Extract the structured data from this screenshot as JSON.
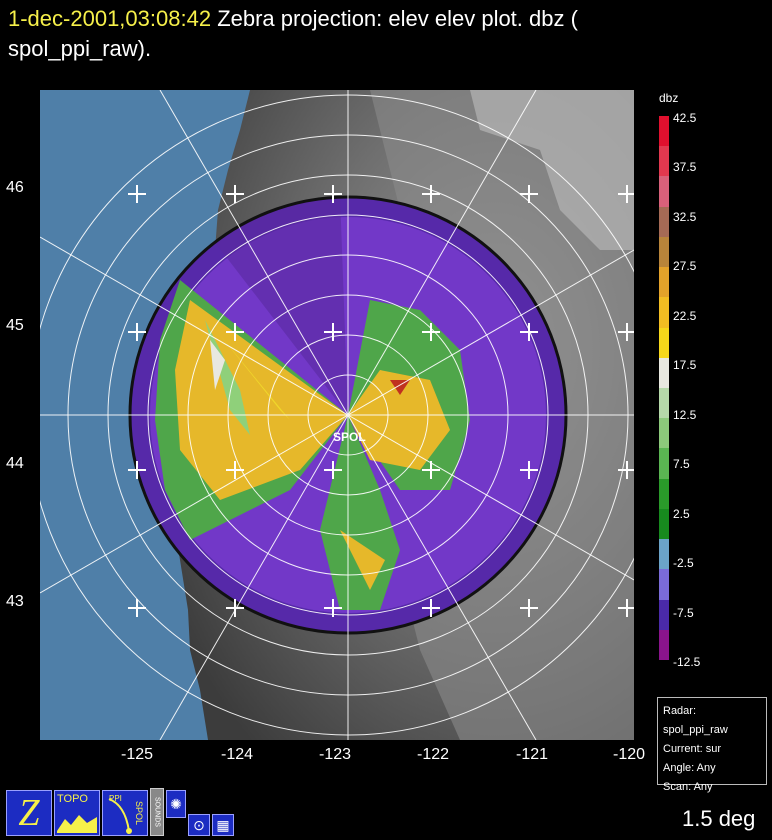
{
  "title": {
    "timestamp": "1-dec-2001,03:08:42",
    "description": "Zebra projection: elev elev  plot.  dbz (",
    "description_line2": "spol_ppi_raw)."
  },
  "map": {
    "y_labels": [
      "46",
      "45",
      "44",
      "43"
    ],
    "x_labels": [
      "-125",
      "-124",
      "-123",
      "-122",
      "-121",
      "-120"
    ],
    "radar_label": "SPOL"
  },
  "colorbar": {
    "title": "dbz",
    "labels": [
      "42.5",
      "37.5",
      "32.5",
      "27.5",
      "22.5",
      "17.5",
      "12.5",
      "7.5",
      "2.5",
      "-2.5",
      "-7.5",
      "-12.5"
    ],
    "colors": [
      "#e0102e",
      "#e2384f",
      "#d9607a",
      "#a56a55",
      "#b8843a",
      "#e3a22a",
      "#f2bd22",
      "#f6d71a",
      "#e8e8e0",
      "#b5d8a9",
      "#8cc97b",
      "#5ab552",
      "#2a9a2a",
      "#178a1e",
      "#6ba3c8",
      "#7a6bd8",
      "#4a2aa8",
      "#8a148c"
    ]
  },
  "info": {
    "radar": "Radar: spol_ppi_raw",
    "current": "Current: sur",
    "angle": "Angle: Any",
    "scan": "Scan: Any"
  },
  "icons": {
    "zebra_label": "Z",
    "topo_label": "TOPO",
    "ppi_label": "PPI",
    "spol_label": "SPOL",
    "sounds_label": "SOUNDS"
  },
  "elevation": "1.5 deg"
}
